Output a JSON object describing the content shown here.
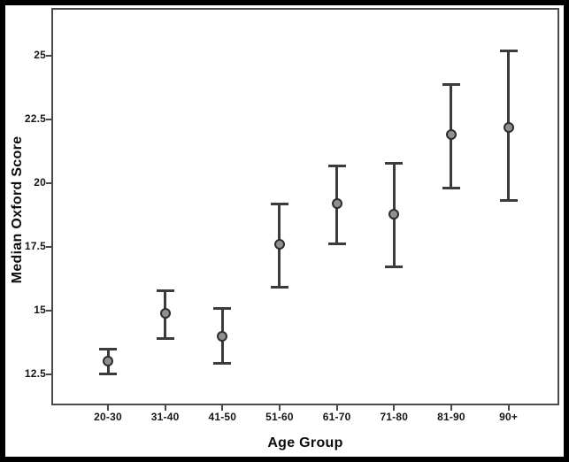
{
  "figure": {
    "x_axis_title": "Age Group",
    "y_axis_title": "Median Oxford Score"
  },
  "chart_data": {
    "type": "scatter",
    "subtype": "error-bar-plot",
    "title": "",
    "xlabel": "Age Group",
    "ylabel": "Median Oxford Score",
    "categories": [
      "20-30",
      "31-40",
      "41-50",
      "51-60",
      "61-70",
      "71-80",
      "81-90",
      "90+"
    ],
    "series": [
      {
        "name": "Median Oxford Score",
        "values": [
          13.0,
          14.9,
          14.0,
          17.6,
          19.2,
          18.8,
          21.9,
          22.2
        ],
        "ci_low": [
          12.5,
          13.9,
          12.9,
          15.9,
          17.6,
          16.7,
          19.8,
          19.3
        ],
        "ci_high": [
          13.5,
          15.8,
          15.1,
          19.2,
          20.7,
          20.8,
          23.9,
          25.2
        ]
      }
    ],
    "y_ticks": [
      {
        "value": 12.5,
        "label": "12.5"
      },
      {
        "value": 15,
        "label": "15"
      },
      {
        "value": 17.5,
        "label": "17.5"
      },
      {
        "value": 20,
        "label": "20"
      },
      {
        "value": 22.5,
        "label": "22.5"
      },
      {
        "value": 25,
        "label": "25"
      }
    ],
    "ylim": [
      11.28,
      26.88
    ],
    "grid": "off",
    "legend": "none",
    "marker": "circle",
    "colors": {
      "error_bar": "#3b3b3b",
      "marker_fill": "#8f8f8f",
      "marker_stroke": "#2d2d2d",
      "frame": "#4a4a4a",
      "background": "#ffffff",
      "outer_border": "#000000",
      "text": "#111111"
    }
  }
}
